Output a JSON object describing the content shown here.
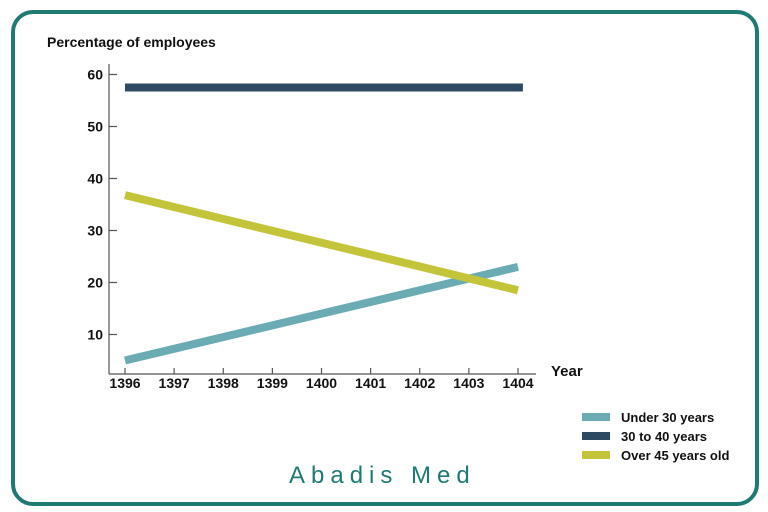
{
  "chart_data": {
    "type": "line",
    "title": "Percentage of employees",
    "xlabel": "Year",
    "ylabel": "",
    "x": [
      "1396",
      "1397",
      "1398",
      "1399",
      "1400",
      "1401",
      "1402",
      "1403",
      "1404"
    ],
    "y_ticks": [
      "10",
      "20",
      "30",
      "40",
      "50",
      "60"
    ],
    "ylim": [
      0,
      60
    ],
    "grid": false,
    "legend_position": "bottom-right",
    "series": [
      {
        "name": "Under 30 years",
        "color": "#6aabb4",
        "points": [
          [
            1396,
            5
          ],
          [
            1404,
            23
          ]
        ]
      },
      {
        "name": "30 to 40 years",
        "color": "#2e4a62",
        "points": [
          [
            1396,
            57.5
          ],
          [
            1404.1,
            57.5
          ]
        ]
      },
      {
        "name": "Over 45 years old",
        "color": "#c3c43a",
        "points": [
          [
            1396,
            36.8
          ],
          [
            1404,
            18.5
          ]
        ]
      }
    ]
  },
  "brand": "Abadis Med"
}
